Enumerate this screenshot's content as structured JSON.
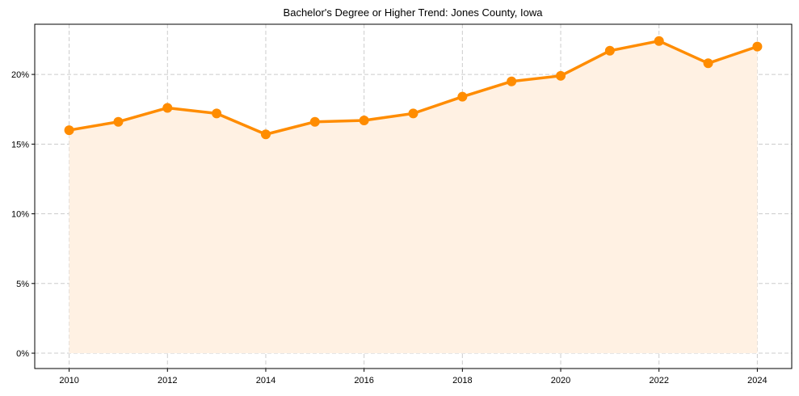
{
  "chart_data": {
    "type": "line",
    "title": "Bachelor's Degree or Higher Trend: Jones County, Iowa",
    "xlabel": "",
    "ylabel": "",
    "x": [
      2010,
      2011,
      2012,
      2013,
      2014,
      2015,
      2016,
      2017,
      2018,
      2019,
      2020,
      2021,
      2022,
      2023,
      2024
    ],
    "series": [
      {
        "name": "Bachelor's Degree or Higher",
        "values": [
          16.0,
          16.6,
          17.6,
          17.2,
          15.7,
          16.6,
          16.7,
          17.2,
          18.4,
          19.5,
          19.9,
          21.7,
          22.4,
          20.8,
          22.0
        ],
        "color": "#ff8c00",
        "fill_color": "#fff1e3",
        "marker": "circle",
        "area_fill": true
      }
    ],
    "xticks": [
      2010,
      2012,
      2014,
      2016,
      2018,
      2020,
      2022,
      2024
    ],
    "xtick_labels": [
      "2010",
      "2012",
      "2014",
      "2016",
      "2018",
      "2020",
      "2022",
      "2024"
    ],
    "yticks": [
      0,
      5,
      10,
      15,
      20
    ],
    "ytick_labels": [
      "0%",
      "5%",
      "10%",
      "15%",
      "20%"
    ],
    "xlim": [
      2009.3,
      2024.7
    ],
    "ylim": [
      -1.1,
      23.6
    ],
    "grid": true,
    "legend": null
  }
}
